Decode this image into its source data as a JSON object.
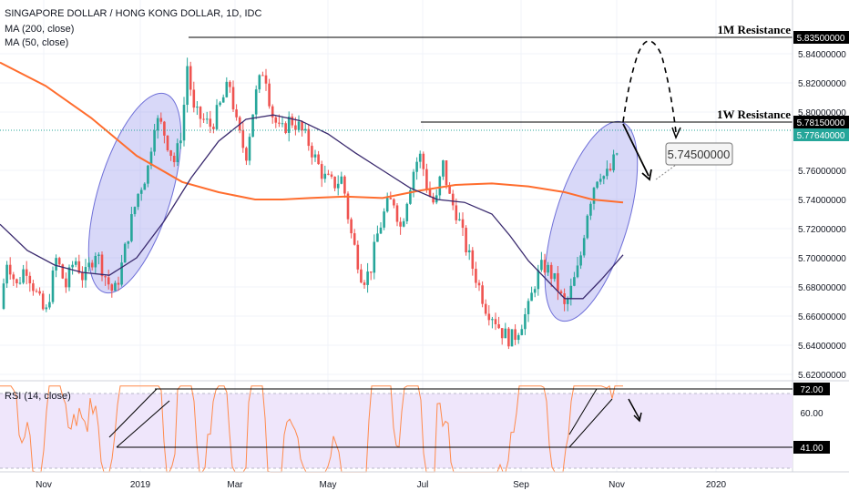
{
  "chart_data": {
    "type": "candlestick",
    "title": "SINGAPORE DOLLAR / HONG KONG DOLLAR, 1D, IDC",
    "indicators": [
      "MA (200, close)",
      "MA (50, close)"
    ],
    "ylim": [
      5.612,
      5.848
    ],
    "y_ticks": [
      "5.84000000",
      "5.82000000",
      "5.80000000",
      "5.76000000",
      "5.74000000",
      "5.72000000",
      "5.70000000",
      "5.68000000",
      "5.66000000",
      "5.64000000",
      "5.62000000"
    ],
    "y_tick_values": [
      5.84,
      5.82,
      5.8,
      5.76,
      5.74,
      5.72,
      5.7,
      5.68,
      5.66,
      5.64,
      5.62
    ],
    "x_ticks": [
      "Nov",
      "2019",
      "Mar",
      "May",
      "Jul",
      "Sep",
      "Nov",
      "2020"
    ],
    "price_path": [
      [
        0,
        5.665
      ],
      [
        8,
        5.7
      ],
      [
        18,
        5.68
      ],
      [
        28,
        5.695
      ],
      [
        40,
        5.675
      ],
      [
        50,
        5.66
      ],
      [
        62,
        5.7
      ],
      [
        72,
        5.68
      ],
      [
        82,
        5.7
      ],
      [
        92,
        5.685
      ],
      [
        105,
        5.705
      ],
      [
        117,
        5.685
      ],
      [
        125,
        5.675
      ],
      [
        132,
        5.69
      ],
      [
        142,
        5.72
      ],
      [
        152,
        5.745
      ],
      [
        162,
        5.76
      ],
      [
        170,
        5.795
      ],
      [
        178,
        5.79
      ],
      [
        186,
        5.775
      ],
      [
        192,
        5.765
      ],
      [
        200,
        5.79
      ],
      [
        206,
        5.835
      ],
      [
        212,
        5.8
      ],
      [
        222,
        5.795
      ],
      [
        232,
        5.79
      ],
      [
        242,
        5.805
      ],
      [
        252,
        5.82
      ],
      [
        260,
        5.79
      ],
      [
        270,
        5.77
      ],
      [
        280,
        5.81
      ],
      [
        290,
        5.832
      ],
      [
        298,
        5.8
      ],
      [
        308,
        5.785
      ],
      [
        318,
        5.795
      ],
      [
        328,
        5.79
      ],
      [
        338,
        5.78
      ],
      [
        348,
        5.765
      ],
      [
        356,
        5.755
      ],
      [
        366,
        5.75
      ],
      [
        376,
        5.755
      ],
      [
        384,
        5.72
      ],
      [
        392,
        5.7
      ],
      [
        398,
        5.685
      ],
      [
        406,
        5.69
      ],
      [
        414,
        5.715
      ],
      [
        424,
        5.735
      ],
      [
        432,
        5.74
      ],
      [
        440,
        5.72
      ],
      [
        448,
        5.745
      ],
      [
        456,
        5.765
      ],
      [
        462,
        5.77
      ],
      [
        470,
        5.745
      ],
      [
        478,
        5.735
      ],
      [
        486,
        5.765
      ],
      [
        494,
        5.74
      ],
      [
        502,
        5.73
      ],
      [
        510,
        5.71
      ],
      [
        518,
        5.695
      ],
      [
        526,
        5.68
      ],
      [
        534,
        5.665
      ],
      [
        542,
        5.66
      ],
      [
        550,
        5.65
      ],
      [
        558,
        5.645
      ],
      [
        564,
        5.645
      ],
      [
        572,
        5.655
      ],
      [
        580,
        5.665
      ],
      [
        588,
        5.685
      ],
      [
        596,
        5.695
      ],
      [
        604,
        5.69
      ],
      [
        612,
        5.68
      ],
      [
        620,
        5.665
      ],
      [
        628,
        5.68
      ],
      [
        636,
        5.695
      ],
      [
        644,
        5.73
      ],
      [
        652,
        5.75
      ],
      [
        658,
        5.76
      ],
      [
        664,
        5.755
      ],
      [
        670,
        5.76
      ],
      [
        676,
        5.77
      ],
      [
        680,
        5.776
      ]
    ],
    "ma200": [
      [
        0,
        5.834
      ],
      [
        50,
        5.818
      ],
      [
        100,
        5.796
      ],
      [
        150,
        5.77
      ],
      [
        200,
        5.752
      ],
      [
        240,
        5.745
      ],
      [
        280,
        5.74
      ],
      [
        310,
        5.74
      ],
      [
        340,
        5.741
      ],
      [
        380,
        5.742
      ],
      [
        420,
        5.741
      ],
      [
        460,
        5.746
      ],
      [
        500,
        5.75
      ],
      [
        540,
        5.751
      ],
      [
        580,
        5.749
      ],
      [
        620,
        5.745
      ],
      [
        650,
        5.74
      ],
      [
        684,
        5.738
      ]
    ],
    "ma50": [
      [
        0,
        5.723
      ],
      [
        30,
        5.705
      ],
      [
        60,
        5.695
      ],
      [
        90,
        5.69
      ],
      [
        120,
        5.688
      ],
      [
        150,
        5.7
      ],
      [
        180,
        5.725
      ],
      [
        210,
        5.755
      ],
      [
        240,
        5.78
      ],
      [
        270,
        5.795
      ],
      [
        300,
        5.798
      ],
      [
        330,
        5.794
      ],
      [
        360,
        5.785
      ],
      [
        390,
        5.772
      ],
      [
        420,
        5.76
      ],
      [
        450,
        5.748
      ],
      [
        480,
        5.74
      ],
      [
        510,
        5.738
      ],
      [
        540,
        5.73
      ],
      [
        560,
        5.715
      ],
      [
        580,
        5.698
      ],
      [
        600,
        5.685
      ],
      [
        620,
        5.672
      ],
      [
        640,
        5.672
      ],
      [
        660,
        5.685
      ],
      [
        684,
        5.702
      ]
    ],
    "resistance_1m": {
      "label": "1M Resistance",
      "value": "5.83500000",
      "y": 5.835
    },
    "resistance_1w": {
      "label": "1W Resistance",
      "value": "5.78150000",
      "y": 5.7815
    },
    "last_price": {
      "value": "5.77640000",
      "y": 5.7764
    },
    "target": {
      "value": "5.74500000"
    },
    "rsi": {
      "label": "RSI (14, close)",
      "ylim": [
        20,
        80
      ],
      "ticks": [
        "72.00",
        "60.00",
        "41.00"
      ],
      "tick_values": [
        72,
        60,
        41
      ],
      "band": [
        30,
        70
      ]
    }
  },
  "colors": {
    "up": "#26a69a",
    "down": "#ef5350",
    "ma200": "#ff6d2e",
    "ma50": "#3a2a6e",
    "ellipse": "#8f90ea",
    "rsi_line": "#ff8a4c",
    "rsi_band": "#efe6fb"
  }
}
